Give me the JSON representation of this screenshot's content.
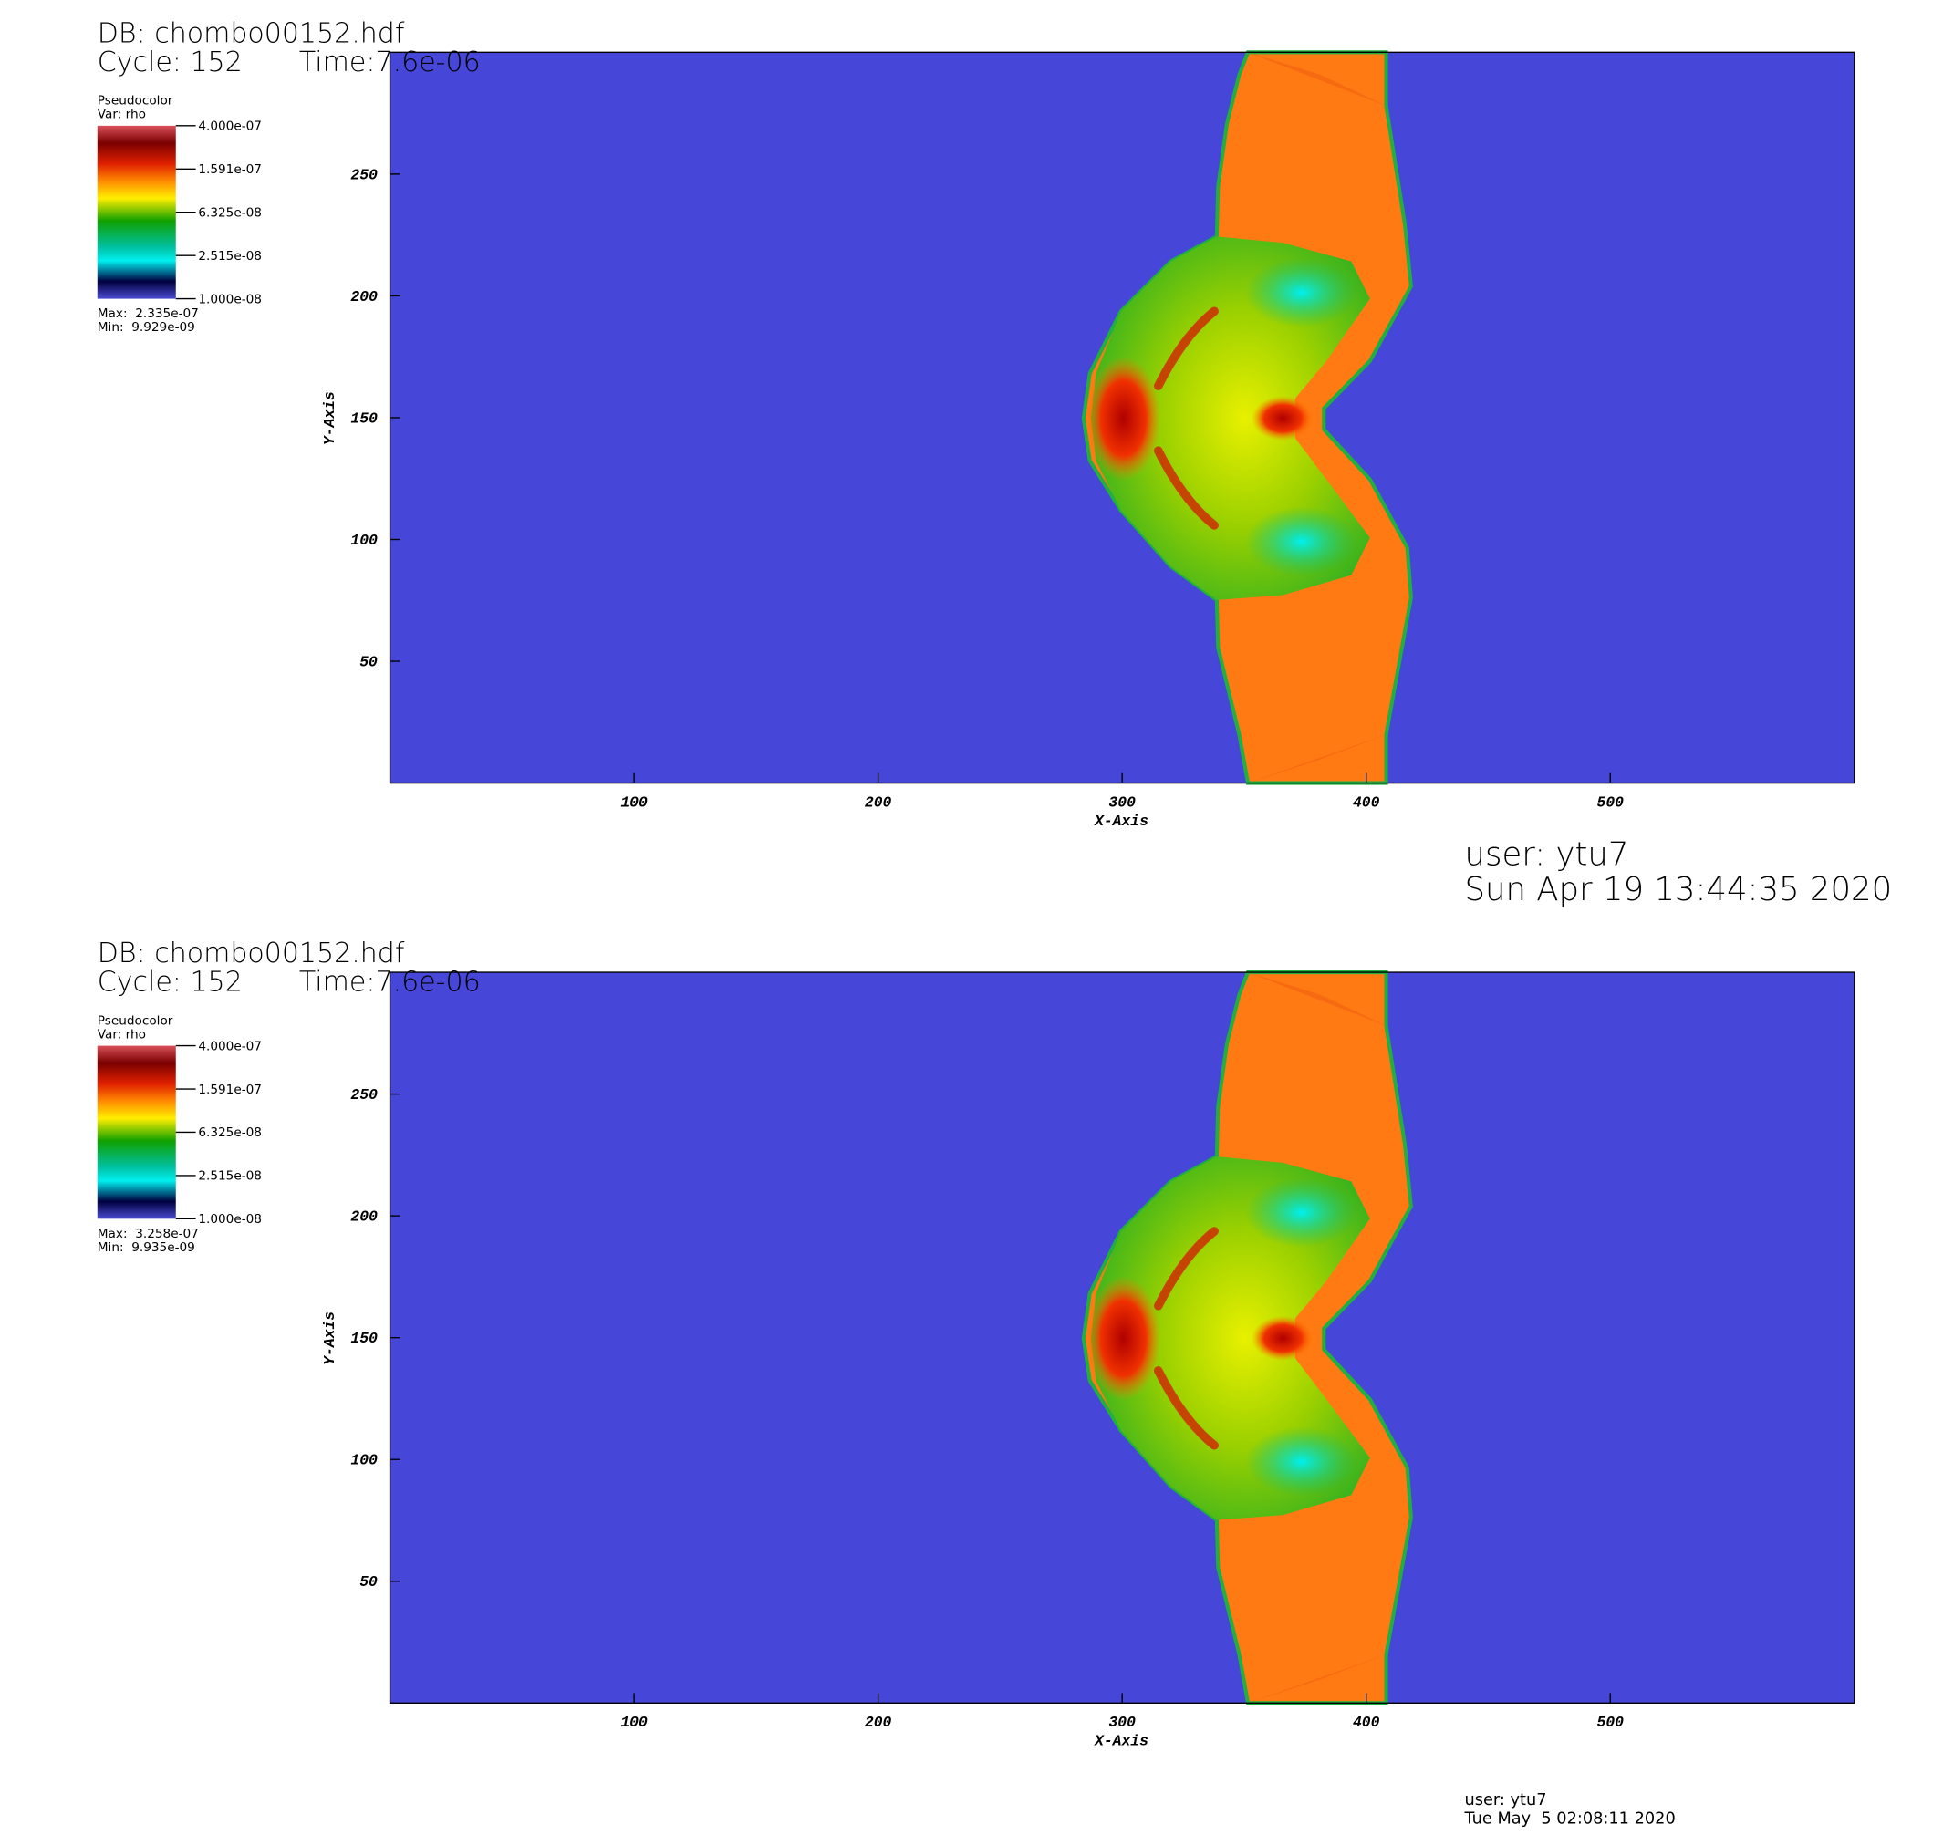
{
  "panels": [
    {
      "db": "DB: chombo00152.hdf",
      "cycle": "Cycle: 152",
      "time": "Time:7.6e-06",
      "legend": {
        "title": "Pseudocolor",
        "var": "Var: rho",
        "labels": [
          "4.000e-07",
          "1.591e-07",
          "6.325e-08",
          "2.515e-08",
          "1.000e-08"
        ],
        "max": "Max:  2.335e-07",
        "min": "Min:  9.929e-09"
      },
      "xaxis": {
        "label": "X-Axis",
        "lim": [
          0,
          600
        ],
        "ticks": [
          100,
          200,
          300,
          400,
          500
        ]
      },
      "yaxis": {
        "label": "Y-Axis",
        "lim": [
          0,
          300
        ],
        "ticks": [
          50,
          100,
          150,
          200,
          250
        ]
      },
      "user": "user: ytu7",
      "date": "Sun Apr 19 13:44:35 2020"
    },
    {
      "db": "DB: chombo00152.hdf",
      "cycle": "Cycle: 152",
      "time": "Time:7.6e-06",
      "legend": {
        "title": "Pseudocolor",
        "var": "Var: rho",
        "labels": [
          "4.000e-07",
          "1.591e-07",
          "6.325e-08",
          "2.515e-08",
          "1.000e-08"
        ],
        "max": "Max:  3.258e-07",
        "min": "Min:  9.935e-09"
      },
      "xaxis": {
        "label": "X-Axis",
        "lim": [
          0,
          600
        ],
        "ticks": [
          100,
          200,
          300,
          400,
          500
        ]
      },
      "yaxis": {
        "label": "Y-Axis",
        "lim": [
          0,
          300
        ],
        "ticks": [
          50,
          100,
          150,
          200,
          250
        ]
      },
      "user": "user: ytu7",
      "date": "Tue May  5 02:08:11 2020"
    }
  ]
}
